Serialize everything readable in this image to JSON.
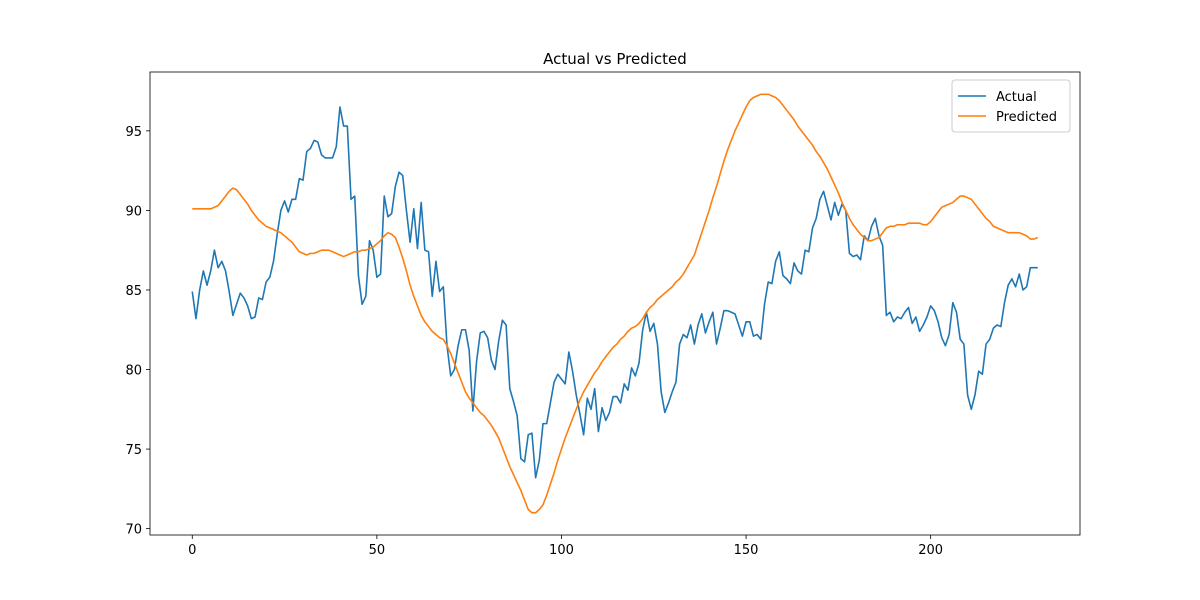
{
  "chart_data": {
    "type": "line",
    "title": "Actual vs Predicted",
    "xlim": [
      -11.45,
      240.45
    ],
    "xticks": [
      0,
      50,
      100,
      150,
      200
    ],
    "ylim": [
      69.6,
      98.7
    ],
    "yticks": [
      70,
      75,
      80,
      85,
      90,
      95
    ],
    "legend": "upper right",
    "series": [
      {
        "name": "Actual",
        "color": "#1f77b4",
        "values": [
          84.9,
          83.2,
          85.0,
          86.2,
          85.3,
          86.2,
          87.5,
          86.4,
          86.8,
          86.2,
          84.9,
          83.4,
          84.1,
          84.8,
          84.5,
          84.0,
          83.2,
          83.3,
          84.5,
          84.4,
          85.5,
          85.8,
          86.8,
          88.5,
          90.0,
          90.6,
          89.9,
          90.7,
          90.7,
          92.0,
          91.9,
          93.7,
          93.9,
          94.4,
          94.3,
          93.5,
          93.3,
          93.3,
          93.3,
          94.0,
          96.5,
          95.3,
          95.3,
          90.7,
          90.9,
          85.9,
          84.1,
          84.6,
          88.1,
          87.5,
          85.8,
          86.0,
          90.9,
          89.6,
          89.8,
          91.5,
          92.4,
          92.2,
          90.0,
          88.0,
          90.1,
          87.6,
          90.5,
          87.5,
          87.4,
          84.6,
          86.8,
          84.9,
          85.2,
          81.5,
          79.6,
          80.0,
          81.5,
          82.5,
          82.5,
          81.2,
          77.4,
          80.5,
          82.3,
          82.4,
          82.0,
          80.6,
          80.0,
          81.8,
          83.1,
          82.8,
          78.8,
          78.0,
          77.1,
          74.4,
          74.2,
          75.9,
          76.0,
          73.2,
          74.3,
          76.6,
          76.6,
          77.9,
          79.2,
          79.7,
          79.4,
          79.1,
          81.1,
          79.9,
          78.4,
          77.2,
          75.9,
          78.2,
          77.5,
          78.8,
          76.1,
          77.6,
          76.8,
          77.3,
          78.3,
          78.3,
          77.9,
          79.1,
          78.7,
          80.1,
          79.6,
          80.4,
          82.5,
          83.6,
          82.4,
          82.9,
          81.6,
          78.6,
          77.3,
          77.9,
          78.6,
          79.2,
          81.6,
          82.2,
          82.0,
          82.8,
          81.6,
          82.8,
          83.5,
          82.3,
          83.0,
          83.6,
          81.6,
          82.6,
          83.7,
          83.7,
          83.6,
          83.5,
          82.8,
          82.1,
          83.0,
          83.0,
          82.1,
          82.2,
          81.9,
          84.1,
          85.5,
          85.4,
          86.8,
          87.4,
          85.9,
          85.7,
          85.4,
          86.7,
          86.2,
          86.0,
          87.5,
          87.4,
          88.9,
          89.5,
          90.7,
          91.2,
          90.3,
          89.4,
          90.5,
          89.7,
          90.4,
          90.0,
          87.3,
          87.1,
          87.2,
          86.9,
          88.4,
          88.1,
          89.0,
          89.5,
          88.4,
          87.8,
          83.4,
          83.6,
          83.0,
          83.3,
          83.2,
          83.6,
          83.9,
          82.9,
          83.3,
          82.4,
          82.8,
          83.3,
          84.0,
          83.7,
          83.0,
          82.0,
          81.5,
          82.2,
          84.2,
          83.6,
          81.9,
          81.6,
          78.4,
          77.5,
          78.4,
          79.9,
          79.7,
          81.6,
          81.9,
          82.6,
          82.8,
          82.7,
          84.2,
          85.3,
          85.7,
          85.2,
          86.0,
          85.0,
          85.2,
          86.4,
          86.4,
          86.4
        ]
      },
      {
        "name": "Predicted",
        "color": "#ff7f0e",
        "values": [
          90.1,
          90.1,
          90.1,
          90.1,
          90.1,
          90.1,
          90.2,
          90.3,
          90.6,
          90.9,
          91.2,
          91.4,
          91.3,
          91.0,
          90.7,
          90.4,
          90.0,
          89.7,
          89.4,
          89.2,
          89.0,
          88.9,
          88.8,
          88.7,
          88.6,
          88.4,
          88.2,
          88.0,
          87.7,
          87.4,
          87.3,
          87.2,
          87.3,
          87.3,
          87.4,
          87.5,
          87.5,
          87.5,
          87.4,
          87.3,
          87.2,
          87.1,
          87.2,
          87.3,
          87.4,
          87.4,
          87.5,
          87.5,
          87.6,
          87.7,
          87.9,
          88.1,
          88.4,
          88.6,
          88.5,
          88.3,
          87.7,
          87.0,
          86.2,
          85.3,
          84.6,
          84.0,
          83.4,
          83.0,
          82.7,
          82.4,
          82.2,
          82.0,
          81.9,
          81.5,
          81.0,
          80.4,
          79.8,
          79.2,
          78.6,
          78.2,
          77.9,
          77.6,
          77.3,
          77.1,
          76.8,
          76.5,
          76.1,
          75.7,
          75.1,
          74.5,
          73.9,
          73.4,
          72.9,
          72.4,
          71.8,
          71.2,
          71.0,
          71.0,
          71.2,
          71.5,
          72.1,
          72.8,
          73.5,
          74.3,
          75.0,
          75.7,
          76.3,
          76.9,
          77.5,
          78.1,
          78.6,
          79.0,
          79.4,
          79.8,
          80.1,
          80.5,
          80.8,
          81.1,
          81.4,
          81.6,
          81.9,
          82.1,
          82.4,
          82.6,
          82.7,
          82.9,
          83.2,
          83.6,
          83.9,
          84.1,
          84.4,
          84.6,
          84.8,
          85.0,
          85.2,
          85.5,
          85.7,
          86.0,
          86.4,
          86.8,
          87.2,
          87.9,
          88.6,
          89.3,
          90.0,
          90.8,
          91.5,
          92.3,
          93.1,
          93.8,
          94.4,
          95.0,
          95.5,
          96.0,
          96.5,
          96.9,
          97.1,
          97.2,
          97.3,
          97.3,
          97.3,
          97.2,
          97.1,
          96.9,
          96.6,
          96.3,
          96.0,
          95.7,
          95.3,
          95.0,
          94.7,
          94.4,
          94.1,
          93.7,
          93.4,
          93.0,
          92.6,
          92.1,
          91.6,
          91.1,
          90.5,
          90.0,
          89.5,
          89.1,
          88.8,
          88.5,
          88.3,
          88.1,
          88.1,
          88.2,
          88.3,
          88.6,
          88.9,
          89.0,
          89.0,
          89.1,
          89.1,
          89.1,
          89.2,
          89.2,
          89.2,
          89.2,
          89.1,
          89.1,
          89.3,
          89.6,
          89.9,
          90.2,
          90.3,
          90.4,
          90.5,
          90.7,
          90.9,
          90.9,
          90.8,
          90.7,
          90.4,
          90.1,
          89.8,
          89.5,
          89.3,
          89.0,
          88.9,
          88.8,
          88.7,
          88.6,
          88.6,
          88.6,
          88.6,
          88.5,
          88.4,
          88.2,
          88.2,
          88.3
        ]
      }
    ]
  }
}
